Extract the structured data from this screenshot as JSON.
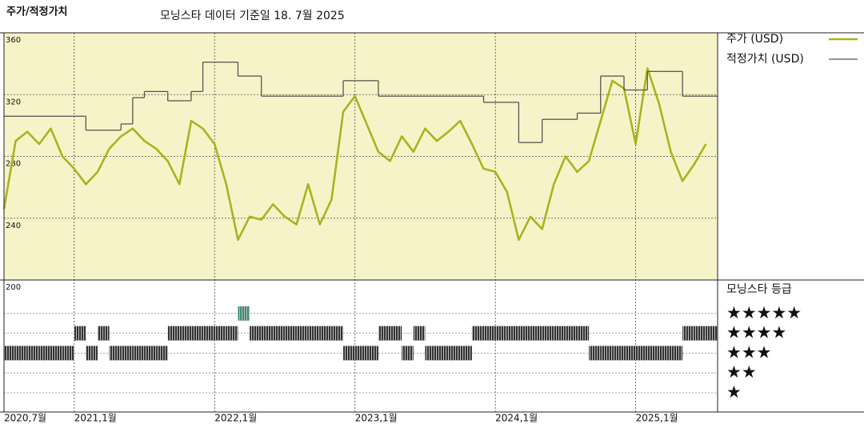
{
  "title": "주가/적정가치",
  "subtitle": "모닝스타 데이터 기준일 18. 7월 2025",
  "chart_data": [
    {
      "type": "line",
      "x": [
        "2020-07",
        "2020-08",
        "2020-09",
        "2020-10",
        "2020-11",
        "2020-12",
        "2021-01",
        "2021-02",
        "2021-03",
        "2021-04",
        "2021-05",
        "2021-06",
        "2021-07",
        "2021-08",
        "2021-09",
        "2021-10",
        "2021-11",
        "2021-12",
        "2022-01",
        "2022-02",
        "2022-03",
        "2022-04",
        "2022-05",
        "2022-06",
        "2022-07",
        "2022-08",
        "2022-09",
        "2022-10",
        "2022-11",
        "2022-12",
        "2023-01",
        "2023-02",
        "2023-03",
        "2023-04",
        "2023-05",
        "2023-06",
        "2023-07",
        "2023-08",
        "2023-09",
        "2023-10",
        "2023-11",
        "2023-12",
        "2024-01",
        "2024-02",
        "2024-03",
        "2024-04",
        "2024-05",
        "2024-06",
        "2024-07",
        "2024-08",
        "2024-09",
        "2024-10",
        "2024-11",
        "2024-12",
        "2025-01",
        "2025-02",
        "2025-03",
        "2025-04",
        "2025-05",
        "2025-06",
        "2025-07"
      ],
      "xlim": [
        "2020-07",
        "2025-08"
      ],
      "xticks": [
        {
          "value": "2020-07",
          "label": "2020,7월"
        },
        {
          "value": "2021-01",
          "label": "2021,1월"
        },
        {
          "value": "2022-01",
          "label": "2022,1월"
        },
        {
          "value": "2023-01",
          "label": "2023,1월"
        },
        {
          "value": "2024-01",
          "label": "2024,1월"
        },
        {
          "value": "2025-01",
          "label": "2025,1월"
        }
      ],
      "ylim": [
        200,
        360
      ],
      "yticks": [
        200,
        240,
        280,
        320,
        360
      ],
      "grid": true,
      "background": "#f7f3c9",
      "series": [
        {
          "name": "주가 (USD)",
          "color": "#a9b31e",
          "values": [
            246,
            290,
            296,
            288,
            298,
            280,
            272,
            262,
            270,
            285,
            293,
            298,
            290,
            285,
            277,
            262,
            303,
            298,
            288,
            262,
            226,
            241,
            239,
            249,
            241,
            236,
            262,
            236,
            252,
            309,
            319,
            301,
            283,
            277,
            293,
            283,
            298,
            290,
            296,
            303,
            288,
            272,
            270,
            257,
            226,
            241,
            233,
            262,
            280,
            270,
            277,
            303,
            329,
            324,
            288,
            337,
            314,
            283,
            264,
            275,
            288
          ]
        },
        {
          "name": "적정가치 (USD)",
          "color": "#555555",
          "step": true,
          "values": [
            306,
            306,
            306,
            306,
            306,
            306,
            306,
            297,
            297,
            297,
            301,
            318,
            322,
            322,
            316,
            316,
            322,
            341,
            341,
            341,
            332,
            332,
            319,
            319,
            319,
            319,
            319,
            319,
            319,
            329,
            329,
            329,
            319,
            319,
            319,
            319,
            319,
            319,
            319,
            319,
            319,
            315,
            315,
            315,
            289,
            289,
            304,
            304,
            304,
            308,
            308,
            332,
            332,
            323,
            323,
            335,
            335,
            335,
            319,
            319,
            319
          ]
        }
      ]
    },
    {
      "type": "rating",
      "title": "모닝스타 등급",
      "levels": [
        "★",
        "★★",
        "★★★",
        "★★★★",
        "★★★★★"
      ],
      "colors": [
        "#333333",
        "#333333",
        "#333333",
        "#333333",
        "#3d8c6e"
      ],
      "values": [
        3,
        3,
        3,
        3,
        3,
        3,
        4,
        3,
        4,
        3,
        3,
        3,
        3,
        3,
        4,
        4,
        4,
        4,
        4,
        4,
        5,
        4,
        4,
        4,
        4,
        4,
        4,
        4,
        4,
        3,
        3,
        3,
        4,
        4,
        3,
        4,
        3,
        3,
        3,
        3,
        4,
        4,
        4,
        4,
        4,
        4,
        4,
        4,
        4,
        4,
        3,
        3,
        3,
        3,
        3,
        3,
        3,
        3,
        4,
        4,
        4
      ]
    }
  ]
}
